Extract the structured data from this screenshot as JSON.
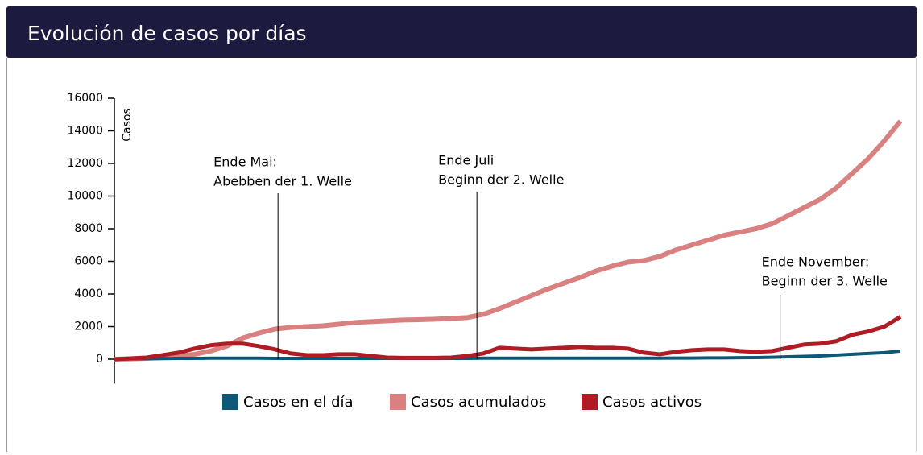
{
  "chart_data": {
    "type": "line",
    "title": "Evolución de casos por días",
    "y_label": "Casos",
    "ylim": [
      -1500,
      16000
    ],
    "yticks": [
      0,
      2000,
      4000,
      6000,
      8000,
      10000,
      12000,
      14000,
      16000
    ],
    "xlim": [
      0,
      49
    ],
    "series": [
      {
        "name": "Casos en el día",
        "color": "#0e5877",
        "values": [
          0,
          20,
          30,
          40,
          50,
          50,
          60,
          60,
          60,
          60,
          50,
          50,
          50,
          50,
          50,
          50,
          50,
          50,
          50,
          50,
          50,
          50,
          50,
          60,
          60,
          60,
          60,
          60,
          60,
          60,
          60,
          60,
          60,
          60,
          60,
          70,
          70,
          80,
          80,
          90,
          100,
          120,
          150,
          170,
          200,
          250,
          300,
          350,
          400,
          500
        ]
      },
      {
        "name": "Casos acumulados",
        "color": "#d98080",
        "values": [
          0,
          20,
          50,
          100,
          200,
          300,
          500,
          800,
          1300,
          1600,
          1850,
          1950,
          2000,
          2050,
          2150,
          2250,
          2300,
          2350,
          2400,
          2420,
          2450,
          2500,
          2550,
          2750,
          3100,
          3500,
          3900,
          4300,
          4650,
          5000,
          5400,
          5700,
          5950,
          6050,
          6300,
          6700,
          7000,
          7300,
          7600,
          7800,
          8000,
          8300,
          8800,
          9300,
          9800,
          10500,
          11400,
          12300,
          13400,
          14600
        ]
      },
      {
        "name": "Casos activos",
        "color": "#b01c24",
        "values": [
          0,
          50,
          100,
          250,
          400,
          650,
          850,
          950,
          950,
          800,
          600,
          350,
          250,
          250,
          300,
          300,
          200,
          100,
          80,
          80,
          80,
          100,
          200,
          350,
          700,
          650,
          600,
          650,
          700,
          750,
          700,
          700,
          650,
          400,
          300,
          450,
          550,
          600,
          600,
          500,
          450,
          500,
          700,
          900,
          950,
          1100,
          1500,
          1700,
          2000,
          2600
        ]
      }
    ],
    "annotations": [
      {
        "x": 10.2,
        "text": [
          "Ende Mai:",
          "Abebben der 1. Welle"
        ]
      },
      {
        "x": 22.6,
        "text": [
          "Ende Juli",
          "Beginn der 2. Welle"
        ]
      },
      {
        "x": 41.5,
        "text": [
          "Ende November:",
          "Beginn der 3. Welle"
        ]
      }
    ]
  }
}
